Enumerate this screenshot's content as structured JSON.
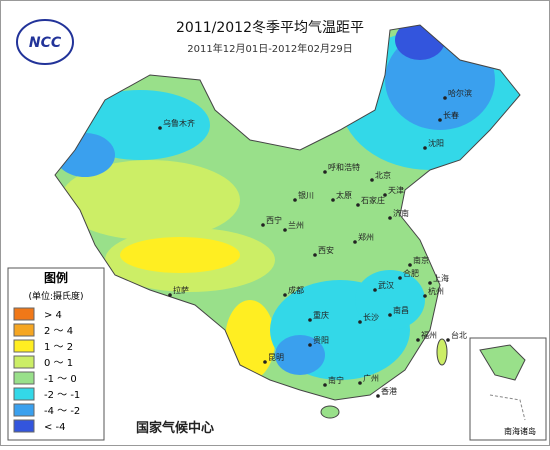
{
  "header": {
    "title": "2011/2012冬季平均气温距平",
    "subtitle": "2011年12月01日-2012年02月29日"
  },
  "logo": "NCC",
  "legend": {
    "title": "图例",
    "unit": "(单位:摄氏度)",
    "items": [
      {
        "label": "> 4",
        "color": "#f07818"
      },
      {
        "label": "2 ～ 4",
        "color": "#f5a623"
      },
      {
        "label": "1 ～ 2",
        "color": "#ffee22"
      },
      {
        "label": "0 ～ 1",
        "color": "#ccee66"
      },
      {
        "label": "-1 ～ 0",
        "color": "#99e08a"
      },
      {
        "label": "-2 ～ -1",
        "color": "#33d8e8"
      },
      {
        "label": "-4 ～ -2",
        "color": "#3aa0ee"
      },
      {
        "label": "< -4",
        "color": "#3355dd"
      }
    ]
  },
  "cities": [
    "乌鲁木齐",
    "哈尔滨",
    "长春",
    "沈阳",
    "呼和浩特",
    "北京",
    "天津",
    "石家庄",
    "太原",
    "济南",
    "银川",
    "西宁",
    "兰州",
    "郑州",
    "西安",
    "拉萨",
    "成都",
    "重庆",
    "武汉",
    "南京",
    "合肥",
    "上海",
    "杭州",
    "长沙",
    "南昌",
    "贵阳",
    "昆明",
    "福州",
    "南宁",
    "广州",
    "香港",
    "台北"
  ],
  "footer": "国家气候中心",
  "inset_label": "南海诸岛"
}
